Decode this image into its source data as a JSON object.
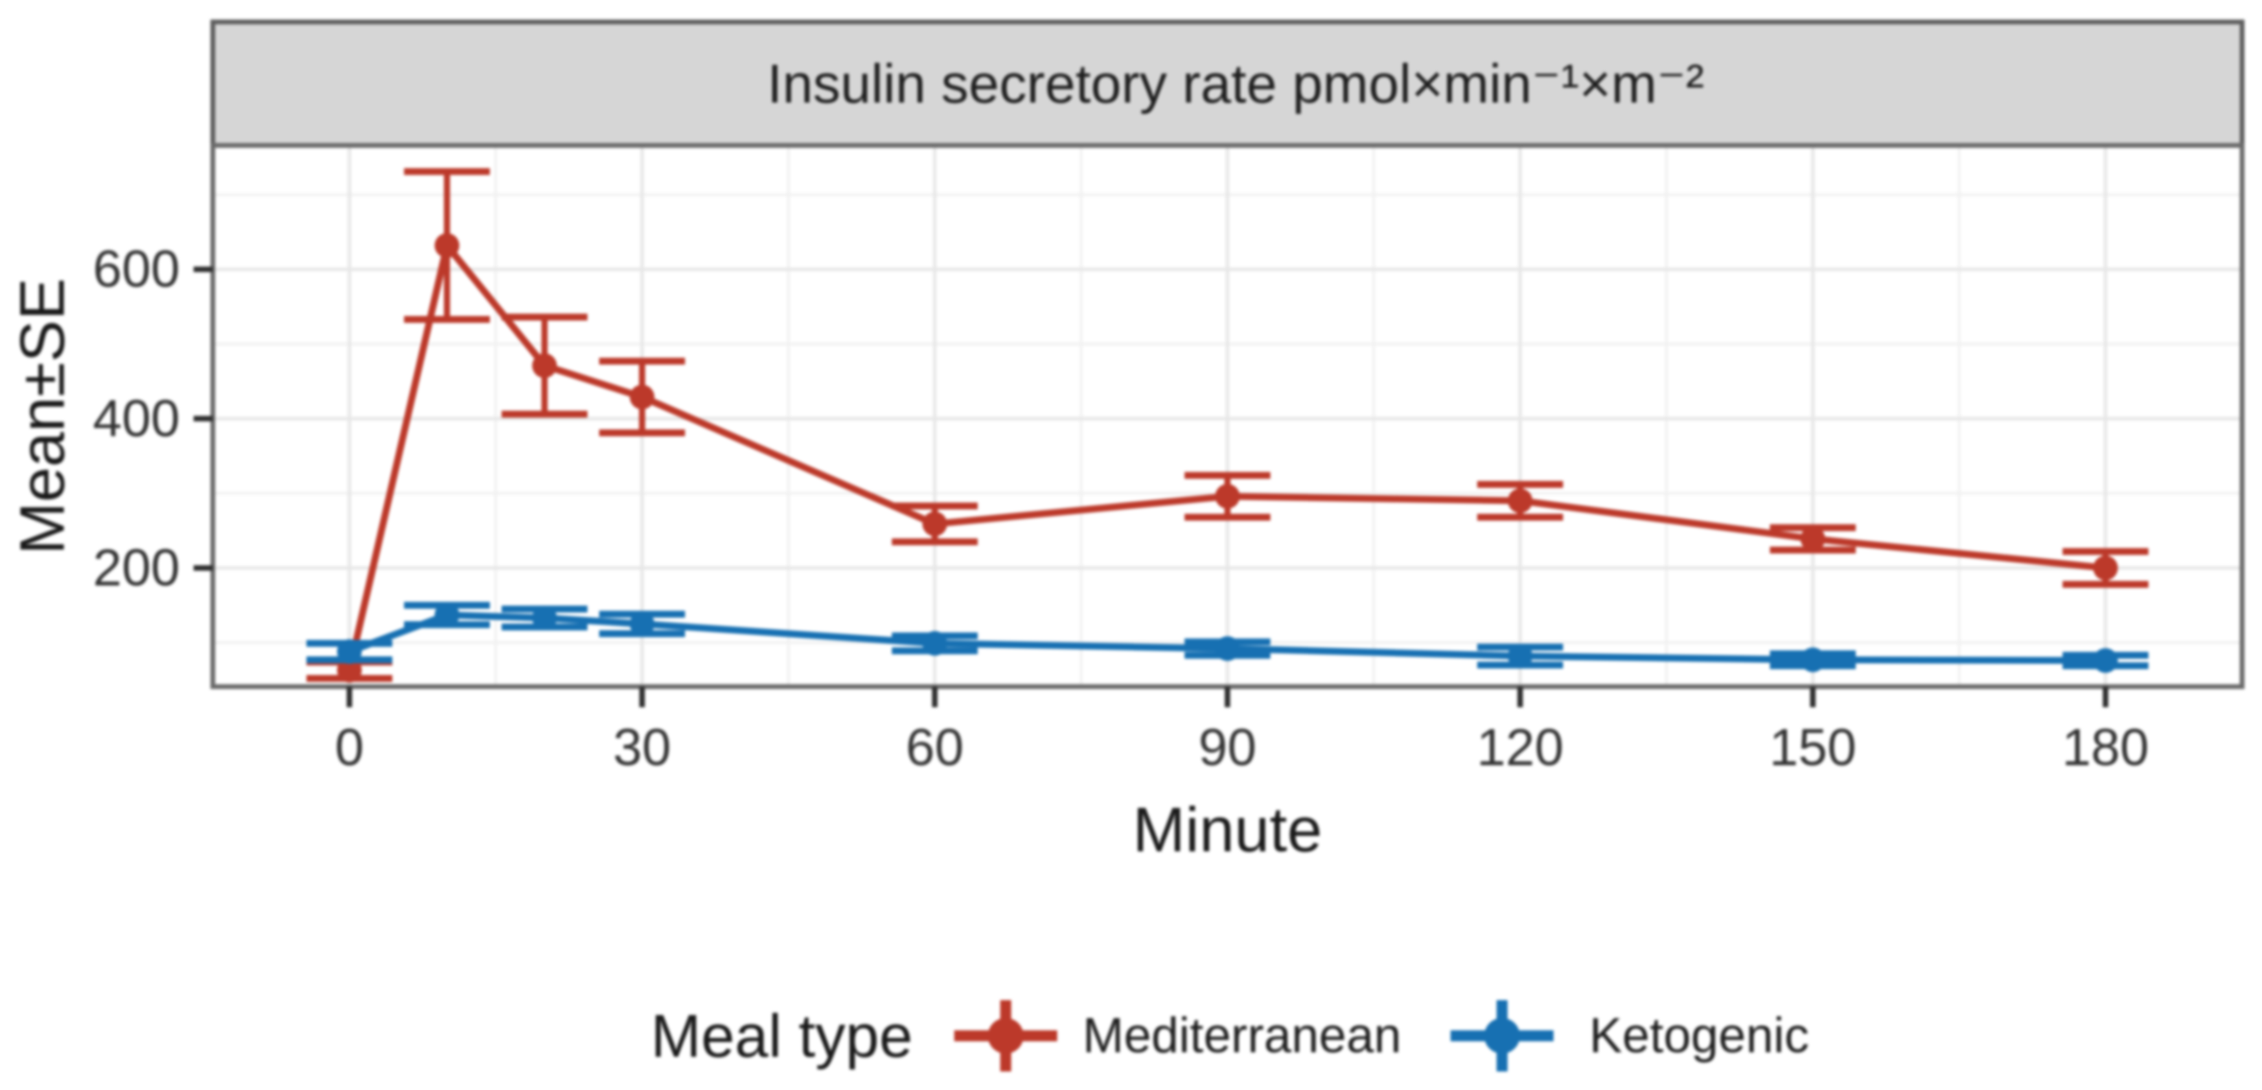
{
  "chart_data": {
    "type": "line",
    "title": "Insulin secretory rate pmol×min⁻¹×m⁻²",
    "xlabel": "Minute",
    "ylabel": "Mean±SE",
    "legend": {
      "title": "Meal type",
      "position": "bottom"
    },
    "x": [
      0,
      10,
      20,
      30,
      60,
      90,
      120,
      150,
      180
    ],
    "series": [
      {
        "name": "Mediterranean",
        "color": "#bc392a",
        "mean": [
          63,
          632,
          471,
          429,
          259,
          296,
          290,
          239,
          200
        ],
        "se": [
          11,
          99,
          65,
          48,
          24,
          28,
          22,
          15,
          22
        ]
      },
      {
        "name": "Ketogenic",
        "color": "#1770b2",
        "mean": [
          88,
          137,
          133,
          125,
          99,
          92,
          82,
          77,
          76
        ],
        "se": [
          11,
          13,
          12,
          13,
          10,
          9,
          12,
          8,
          7
        ]
      }
    ],
    "x_ticks": [
      0,
      30,
      60,
      90,
      120,
      150,
      180
    ],
    "x_minor": [
      15,
      45,
      75,
      105,
      135,
      165
    ],
    "y_ticks": [
      200,
      400,
      600
    ],
    "y_minor": [
      100,
      300,
      500,
      700
    ],
    "xlim": [
      -14,
      194
    ],
    "ylim": [
      41,
      766
    ],
    "grid": {
      "major": true,
      "minor": true
    },
    "error_cap_halfwidth_minutes": 4.4,
    "panel_background": "#ffffff",
    "strip_background": "#d6d6d6"
  }
}
